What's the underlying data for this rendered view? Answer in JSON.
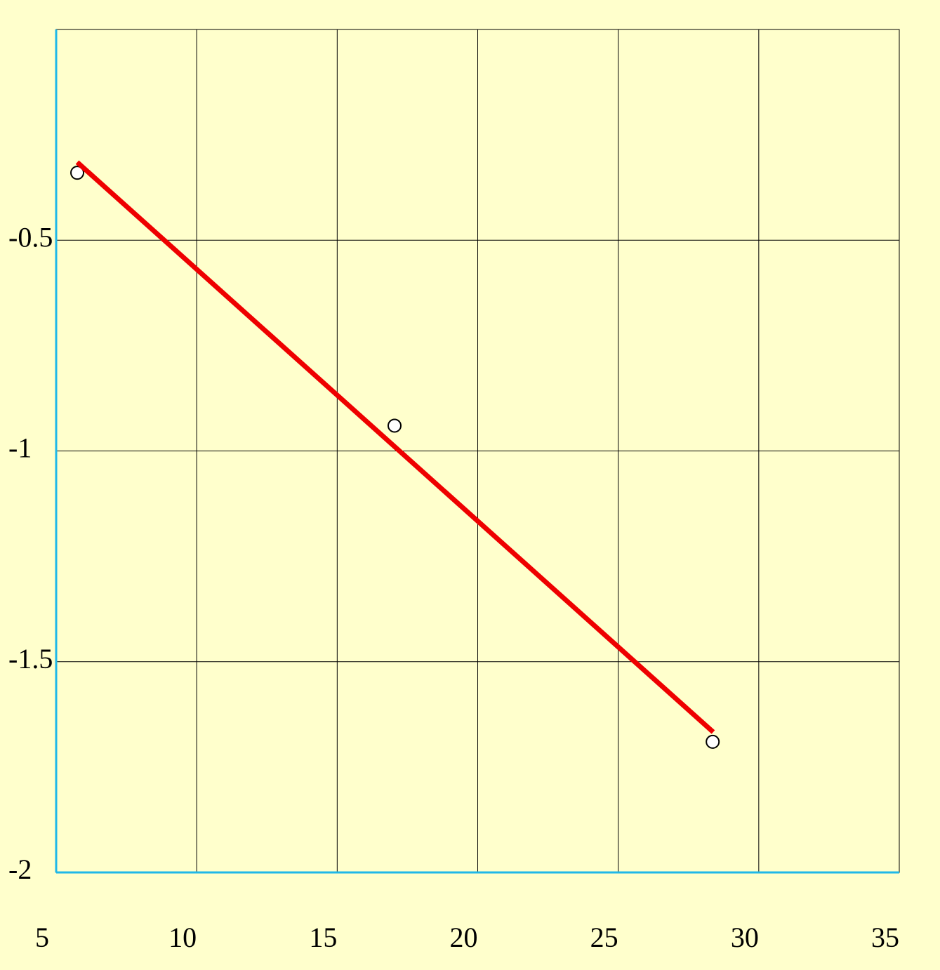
{
  "chart_data": {
    "type": "scatter",
    "xlim": [
      5,
      35
    ],
    "xticks": [
      5,
      10,
      15,
      20,
      25,
      30,
      35
    ],
    "ylim": [
      -2,
      0
    ],
    "yticks": [
      -2,
      -1.5,
      -1,
      -0.5
    ],
    "grid": true,
    "background": "#ffffcc",
    "axis_color": "#1fb8e8",
    "series": [
      {
        "style": "markers",
        "color": "#ffffff",
        "x": [
          5.75,
          17.04,
          28.36
        ],
        "values": [
          -0.34,
          -0.94,
          -1.69
        ]
      },
      {
        "style": "line",
        "color": "#ee0000",
        "x": [
          5.75,
          28.38
        ],
        "values": [
          -0.315,
          -1.667
        ]
      }
    ]
  }
}
